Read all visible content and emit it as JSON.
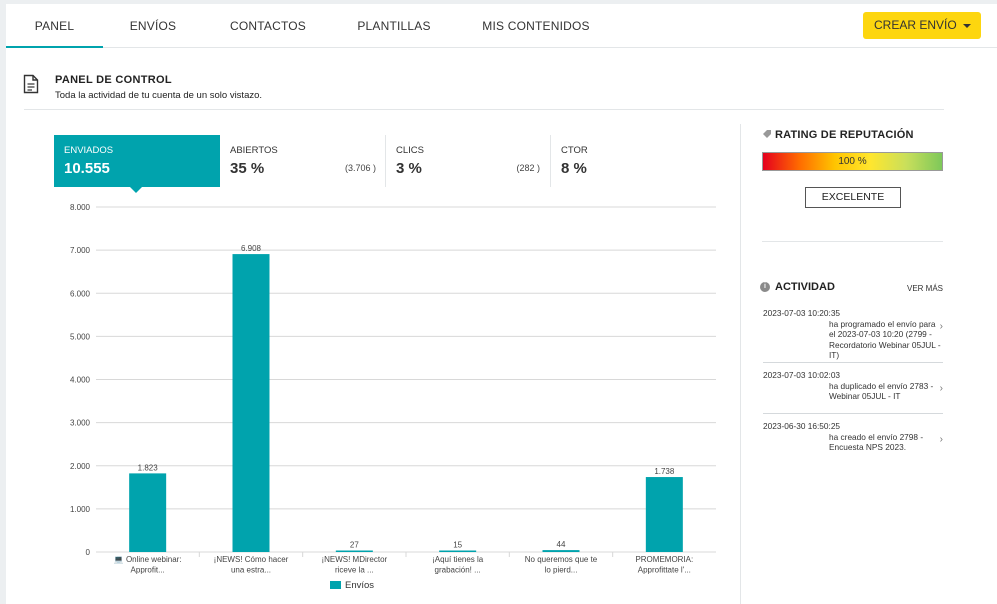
{
  "nav": {
    "tabs": [
      {
        "label": "PANEL",
        "active": true
      },
      {
        "label": "ENVÍOS"
      },
      {
        "label": "CONTACTOS"
      },
      {
        "label": "PLANTILLAS"
      },
      {
        "label": "MIS CONTENIDOS"
      }
    ],
    "create_button": "CREAR ENVÍO"
  },
  "panel": {
    "title": "PANEL DE CONTROL",
    "subtitle": "Toda la actividad de tu cuenta de un solo vistazo."
  },
  "kpis": [
    {
      "label": "ENVIADOS",
      "value": "10.555",
      "active": true
    },
    {
      "label": "ABIERTOS",
      "value": "35 %",
      "count": "(3.706 )"
    },
    {
      "label": "CLICS",
      "value": "3 %",
      "count": "(282 )"
    },
    {
      "label": "CTOR",
      "value": "8 %"
    }
  ],
  "chart_data": {
    "type": "bar",
    "categories": [
      [
        "💻 Online webinar:",
        "Approfit..."
      ],
      [
        "¡NEWS! Cómo hacer",
        "una estra..."
      ],
      [
        "¡NEWS! MDirector",
        "riceve la ..."
      ],
      [
        "¡Aquí tienes la",
        "grabación! ..."
      ],
      [
        "No queremos que te",
        "lo pierd..."
      ],
      [
        "PROMEMORIA:",
        "Approfittate l'..."
      ]
    ],
    "values": [
      1823,
      6908,
      27,
      15,
      44,
      1738
    ],
    "value_labels": [
      "1.823",
      "6.908",
      "27",
      "15",
      "44",
      "1.738"
    ],
    "ylim": [
      0,
      8000
    ],
    "yticks": [
      "0",
      "1.000",
      "2.000",
      "3.000",
      "4.000",
      "5.000",
      "6.000",
      "7.000",
      "8.000"
    ],
    "series": [
      {
        "name": "Envíos"
      }
    ],
    "color": "#00a3ad",
    "grid": true,
    "legend_position": "bottom"
  },
  "reputation": {
    "title": "RATING DE REPUTACIÓN",
    "value": "100 %",
    "rating": "EXCELENTE"
  },
  "activity": {
    "title": "ACTIVIDAD",
    "more": "VER MÁS",
    "items": [
      {
        "timestamp": "2023-07-03 10:20:35",
        "text": "ha programado el envío para el 2023-07-03 10:20 (2799 - Recordatorio Webinar 05JUL - IT)"
      },
      {
        "timestamp": "2023-07-03 10:02:03",
        "text": "ha duplicado el envío 2783 - Webinar 05JUL - IT"
      },
      {
        "timestamp": "2023-06-30 16:50:25",
        "text": "ha creado el envío 2798 - Encuesta NPS 2023."
      }
    ]
  }
}
